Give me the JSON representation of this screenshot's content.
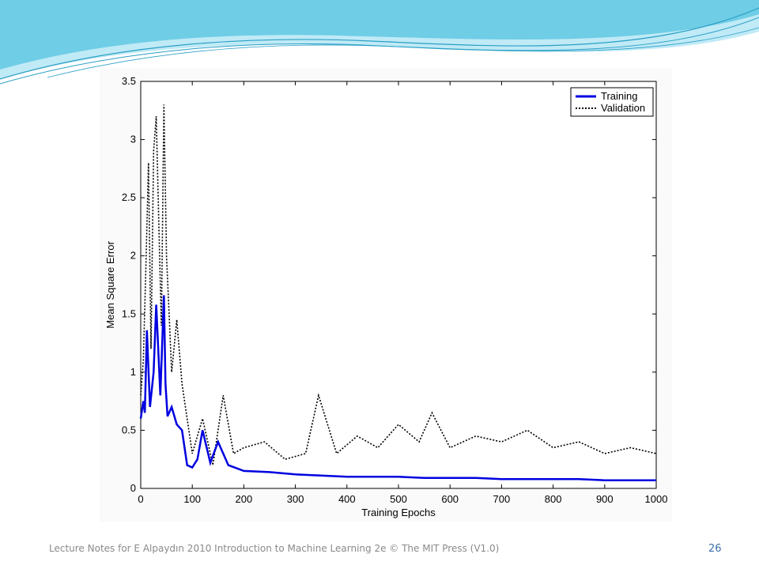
{
  "footer": {
    "note": "Lecture Notes for E Alpaydın 2010 Introduction to Machine Learning 2e © The MIT Press (V1.0)",
    "page_number": "26"
  },
  "colors": {
    "training": "#0000e0",
    "validation": "#000000",
    "wave_light": "#bfeaf6",
    "wave_mid": "#6fcde6",
    "wave_dark": "#2a9fc5",
    "page_number": "#3a6fa8"
  },
  "chart_data": {
    "type": "line",
    "xlabel": "Training Epochs",
    "ylabel": "Mean Square Error",
    "xlim": [
      0,
      1000
    ],
    "ylim": [
      0,
      3.5
    ],
    "xticks": [
      "0",
      "100",
      "200",
      "300",
      "400",
      "500",
      "600",
      "700",
      "800",
      "900",
      "1000"
    ],
    "yticks": [
      "0",
      "0.5",
      "1",
      "1.5",
      "2",
      "2.5",
      "3",
      "3.5"
    ],
    "grid": false,
    "legend_position": "top-right",
    "series": [
      {
        "name": "Training",
        "style": "solid",
        "x": [
          0,
          5,
          8,
          12,
          18,
          25,
          30,
          38,
          45,
          48,
          52,
          60,
          70,
          80,
          90,
          100,
          110,
          120,
          135,
          150,
          170,
          200,
          250,
          300,
          350,
          400,
          450,
          500,
          550,
          600,
          650,
          700,
          750,
          800,
          850,
          900,
          950,
          1000
        ],
        "y": [
          0.6,
          0.75,
          0.65,
          1.36,
          0.7,
          1.0,
          1.58,
          0.8,
          1.66,
          0.9,
          0.62,
          0.7,
          0.55,
          0.5,
          0.2,
          0.18,
          0.25,
          0.5,
          0.22,
          0.4,
          0.2,
          0.15,
          0.14,
          0.12,
          0.11,
          0.1,
          0.1,
          0.1,
          0.09,
          0.09,
          0.09,
          0.08,
          0.08,
          0.08,
          0.08,
          0.07,
          0.07,
          0.07
        ]
      },
      {
        "name": "Validation",
        "style": "dotted",
        "x": [
          0,
          5,
          10,
          15,
          20,
          25,
          30,
          35,
          40,
          45,
          50,
          55,
          60,
          70,
          80,
          90,
          100,
          120,
          140,
          160,
          180,
          200,
          240,
          280,
          320,
          345,
          380,
          420,
          460,
          500,
          540,
          565,
          600,
          650,
          700,
          750,
          800,
          850,
          900,
          950,
          1000
        ],
        "y": [
          0.8,
          1.1,
          1.9,
          2.8,
          1.2,
          2.9,
          3.2,
          2.3,
          1.4,
          3.3,
          2.0,
          1.5,
          1.0,
          1.45,
          0.9,
          0.6,
          0.3,
          0.6,
          0.2,
          0.8,
          0.3,
          0.35,
          0.4,
          0.25,
          0.3,
          0.8,
          0.3,
          0.45,
          0.35,
          0.55,
          0.4,
          0.65,
          0.35,
          0.45,
          0.4,
          0.5,
          0.35,
          0.4,
          0.3,
          0.35,
          0.3
        ]
      }
    ]
  }
}
